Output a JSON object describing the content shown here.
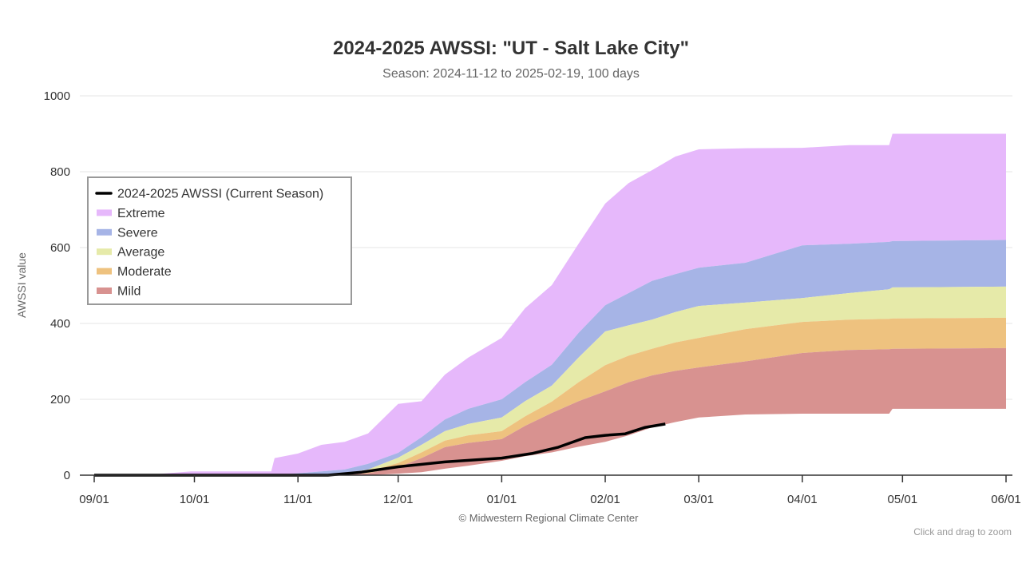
{
  "chart_data": {
    "type": "area",
    "title": "2024-2025 AWSSI: \"UT - Salt Lake City\"",
    "subtitle": "Season: 2024-11-12 to 2025-02-19, 100 days",
    "ylabel": "AWSSI value",
    "xlabel": "",
    "ylim": [
      0,
      1000
    ],
    "xlim": [
      "2024-09-01",
      "2025-06-01"
    ],
    "y_ticks": [
      "0",
      "200",
      "400",
      "600",
      "800",
      "1000"
    ],
    "x_ticks": [
      {
        "date": "2024-09-01",
        "label": "09/01"
      },
      {
        "date": "2024-10-01",
        "label": "10/01"
      },
      {
        "date": "2024-11-01",
        "label": "11/01"
      },
      {
        "date": "2024-12-01",
        "label": "12/01"
      },
      {
        "date": "2025-01-01",
        "label": "01/01"
      },
      {
        "date": "2025-02-01",
        "label": "02/01"
      },
      {
        "date": "2025-03-01",
        "label": "03/01"
      },
      {
        "date": "2025-04-01",
        "label": "04/01"
      },
      {
        "date": "2025-05-01",
        "label": "05/01"
      },
      {
        "date": "2025-06-01",
        "label": "06/01"
      }
    ],
    "grid": true,
    "legend_placement": "left",
    "dates": [
      "2024-09-01",
      "2024-09-20",
      "2024-09-30",
      "2024-10-24",
      "2024-10-25",
      "2024-11-01",
      "2024-11-08",
      "2024-11-15",
      "2024-11-22",
      "2024-12-01",
      "2024-12-08",
      "2024-12-15",
      "2024-12-22",
      "2025-01-01",
      "2025-01-08",
      "2025-01-16",
      "2025-01-24",
      "2025-02-01",
      "2025-02-08",
      "2025-02-15",
      "2025-02-22",
      "2025-03-01",
      "2025-03-15",
      "2025-04-01",
      "2025-04-15",
      "2025-04-27",
      "2025-04-28",
      "2025-06-01"
    ],
    "bands": [
      {
        "name": "Extreme",
        "color": "#e6b8fb",
        "lower": [
          0,
          0,
          0,
          0,
          0,
          5,
          10,
          15,
          30,
          59,
          100,
          147,
          175,
          200,
          245,
          291,
          375,
          448,
          480,
          512,
          530,
          547,
          560,
          606,
          610,
          615,
          617,
          620
        ],
        "upper": [
          0,
          3,
          10,
          10,
          45,
          57,
          80,
          88,
          110,
          188,
          195,
          265,
          310,
          362,
          440,
          501,
          610,
          716,
          770,
          804,
          840,
          859,
          862,
          863,
          870,
          870,
          900,
          900
        ]
      },
      {
        "name": "Severe",
        "color": "#a6b4e6",
        "lower": [
          0,
          0,
          0,
          0,
          0,
          0,
          2,
          5,
          15,
          46,
          80,
          116,
          135,
          152,
          195,
          236,
          310,
          379,
          395,
          410,
          430,
          446,
          455,
          467,
          480,
          490,
          495,
          497
        ],
        "upper": [
          0,
          0,
          0,
          0,
          0,
          5,
          10,
          15,
          30,
          59,
          100,
          147,
          175,
          200,
          245,
          291,
          375,
          448,
          480,
          512,
          530,
          547,
          560,
          606,
          610,
          615,
          617,
          620
        ]
      },
      {
        "name": "Average",
        "color": "#e6eaa9",
        "lower": [
          0,
          0,
          0,
          0,
          0,
          0,
          1,
          3,
          10,
          32,
          60,
          91,
          105,
          116,
          155,
          194,
          245,
          290,
          315,
          333,
          350,
          362,
          385,
          404,
          410,
          412,
          413,
          415
        ],
        "upper": [
          0,
          0,
          0,
          0,
          0,
          0,
          2,
          5,
          15,
          46,
          80,
          116,
          135,
          152,
          195,
          236,
          310,
          379,
          395,
          410,
          430,
          446,
          455,
          467,
          480,
          490,
          495,
          497
        ]
      },
      {
        "name": "Moderate",
        "color": "#eec27f",
        "lower": [
          0,
          0,
          0,
          0,
          0,
          0,
          0,
          1,
          5,
          21,
          45,
          74,
          85,
          95,
          130,
          164,
          195,
          221,
          245,
          263,
          275,
          284,
          300,
          322,
          330,
          332,
          333,
          335
        ],
        "upper": [
          0,
          0,
          0,
          0,
          0,
          0,
          1,
          3,
          10,
          32,
          60,
          91,
          105,
          116,
          155,
          194,
          245,
          290,
          315,
          333,
          350,
          362,
          385,
          404,
          410,
          412,
          413,
          415
        ]
      },
      {
        "name": "Mild",
        "color": "#d89290",
        "lower": [
          0,
          0,
          0,
          0,
          0,
          0,
          0,
          0,
          0,
          4,
          8,
          17,
          25,
          38,
          50,
          60,
          75,
          88,
          105,
          126,
          140,
          152,
          160,
          162,
          162,
          162,
          175,
          175
        ],
        "upper": [
          0,
          0,
          0,
          0,
          0,
          0,
          0,
          1,
          5,
          21,
          45,
          74,
          85,
          95,
          130,
          164,
          195,
          221,
          245,
          263,
          275,
          284,
          300,
          322,
          330,
          332,
          333,
          335
        ]
      }
    ],
    "current_season": {
      "name": "2024-2025 AWSSI (Current Season)",
      "color": "#000000",
      "points": [
        [
          "2024-09-01",
          0
        ],
        [
          "2024-11-10",
          0
        ],
        [
          "2024-11-20",
          8
        ],
        [
          "2024-12-01",
          22
        ],
        [
          "2024-12-15",
          35
        ],
        [
          "2025-01-01",
          45
        ],
        [
          "2025-01-10",
          57
        ],
        [
          "2025-01-18",
          74
        ],
        [
          "2025-01-26",
          99
        ],
        [
          "2025-02-01",
          105
        ],
        [
          "2025-02-07",
          109
        ],
        [
          "2025-02-13",
          126
        ],
        [
          "2025-02-19",
          135
        ]
      ]
    }
  },
  "credits": "© Midwestern Regional Climate Center",
  "zoom_hint": "Click and drag to zoom"
}
